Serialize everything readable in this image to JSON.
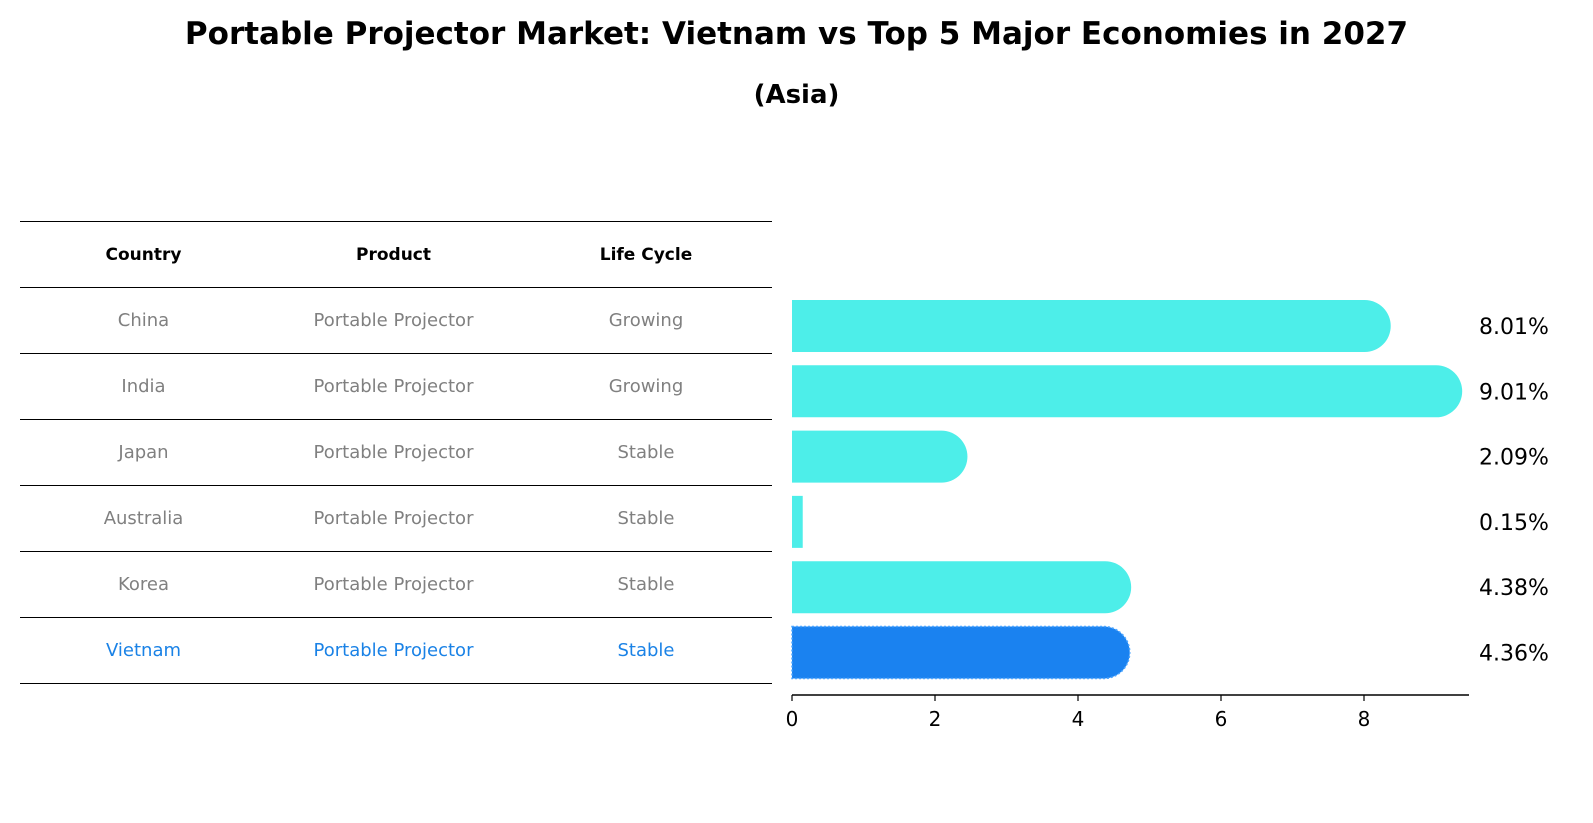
{
  "title": "Portable Projector Market: Vietnam vs Top 5 Major Economies in 2027",
  "subtitle": "(Asia)",
  "table": {
    "headers": [
      "Country",
      "Product",
      "Life Cycle"
    ],
    "rows": [
      [
        "China",
        "Portable Projector",
        "Growing"
      ],
      [
        "India",
        "Portable Projector",
        "Growing"
      ],
      [
        "Japan",
        "Portable Projector",
        "Stable"
      ],
      [
        "Australia",
        "Portable Projector",
        "Stable"
      ],
      [
        "Korea",
        "Portable Projector",
        "Stable"
      ],
      [
        "Vietnam",
        "Portable Projector",
        "Stable"
      ]
    ]
  },
  "chart_data": {
    "type": "bar",
    "orientation": "horizontal",
    "categories": [
      "China",
      "India",
      "Japan",
      "Australia",
      "Korea",
      "Vietnam"
    ],
    "values": [
      8.01,
      9.01,
      2.09,
      0.15,
      4.38,
      4.36
    ],
    "value_labels": [
      "8.01%",
      "9.01%",
      "2.09%",
      "0.15%",
      "4.38%",
      "4.36%"
    ],
    "highlight": "Vietnam",
    "colors": {
      "bar": "#4deee9",
      "highlight": "#1a82f0"
    },
    "xticks": [
      0,
      2,
      4,
      6,
      8
    ],
    "xlim": [
      0,
      9.45
    ],
    "title": "Portable Projector Market: Vietnam vs Top 5 Major Economies in 2027",
    "xlabel": "",
    "ylabel": ""
  }
}
